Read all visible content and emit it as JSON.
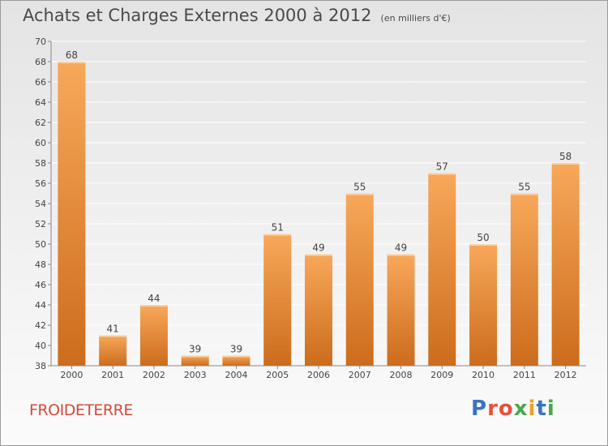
{
  "title": "Achats et Charges Externes 2000 à 2012",
  "subtitle": "(en milliers d'€)",
  "commune": "FROIDETERRE",
  "logo": "Proxiti",
  "colors": {
    "bar_top": "#f8a85a",
    "bar_bottom": "#cc6c1c",
    "commune": "#d8483c",
    "logo": [
      "#3a74c0",
      "#e8503a",
      "#e8503a",
      "#4aa84a",
      "#f0a020",
      "#3a74c0",
      "#4aa84a"
    ]
  },
  "chart_data": {
    "type": "bar",
    "categories": [
      "2000",
      "2001",
      "2002",
      "2003",
      "2004",
      "2005",
      "2006",
      "2007",
      "2008",
      "2009",
      "2010",
      "2011",
      "2012"
    ],
    "values": [
      68,
      41,
      44,
      39,
      39,
      51,
      49,
      55,
      49,
      57,
      50,
      55,
      58
    ],
    "ylim": [
      38,
      70
    ],
    "yticks": [
      38,
      40,
      42,
      44,
      46,
      48,
      50,
      52,
      54,
      56,
      58,
      60,
      62,
      64,
      66,
      68,
      70
    ],
    "grid": true,
    "legend": "none"
  }
}
